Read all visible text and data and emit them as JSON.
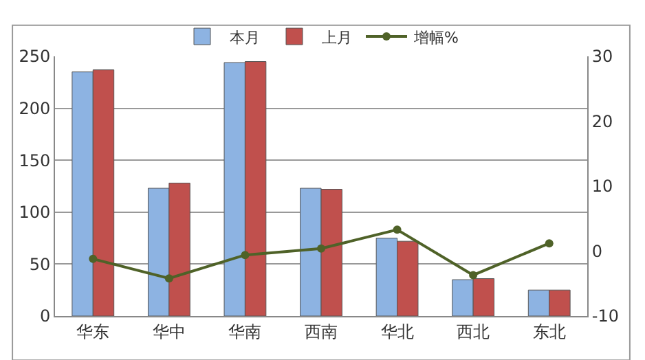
{
  "chart_data": {
    "type": "bar",
    "categories": [
      "华东",
      "华中",
      "华南",
      "西南",
      "华北",
      "西北",
      "东北"
    ],
    "series": [
      {
        "name": "本月",
        "color": "#8db3e2",
        "values": [
          235,
          123,
          244,
          123,
          75,
          35,
          25
        ]
      },
      {
        "name": "上月",
        "color": "#c0504d",
        "values": [
          237,
          128,
          245,
          122,
          72,
          36,
          25
        ]
      },
      {
        "name": "增幅%",
        "type": "line",
        "axis": "y2",
        "color": "#4f6228",
        "values": [
          -1.2,
          -4.2,
          -0.6,
          0.4,
          3.3,
          -3.7,
          1.2
        ]
      }
    ],
    "ylim": [
      0,
      250
    ],
    "yticks": [
      0,
      50,
      100,
      150,
      200,
      250
    ],
    "y2lim": [
      -10,
      30
    ],
    "y2ticks": [
      -10,
      0,
      10,
      20,
      30
    ],
    "grid": "y",
    "legend": "top",
    "marker": "circle",
    "line_style": "solid"
  }
}
